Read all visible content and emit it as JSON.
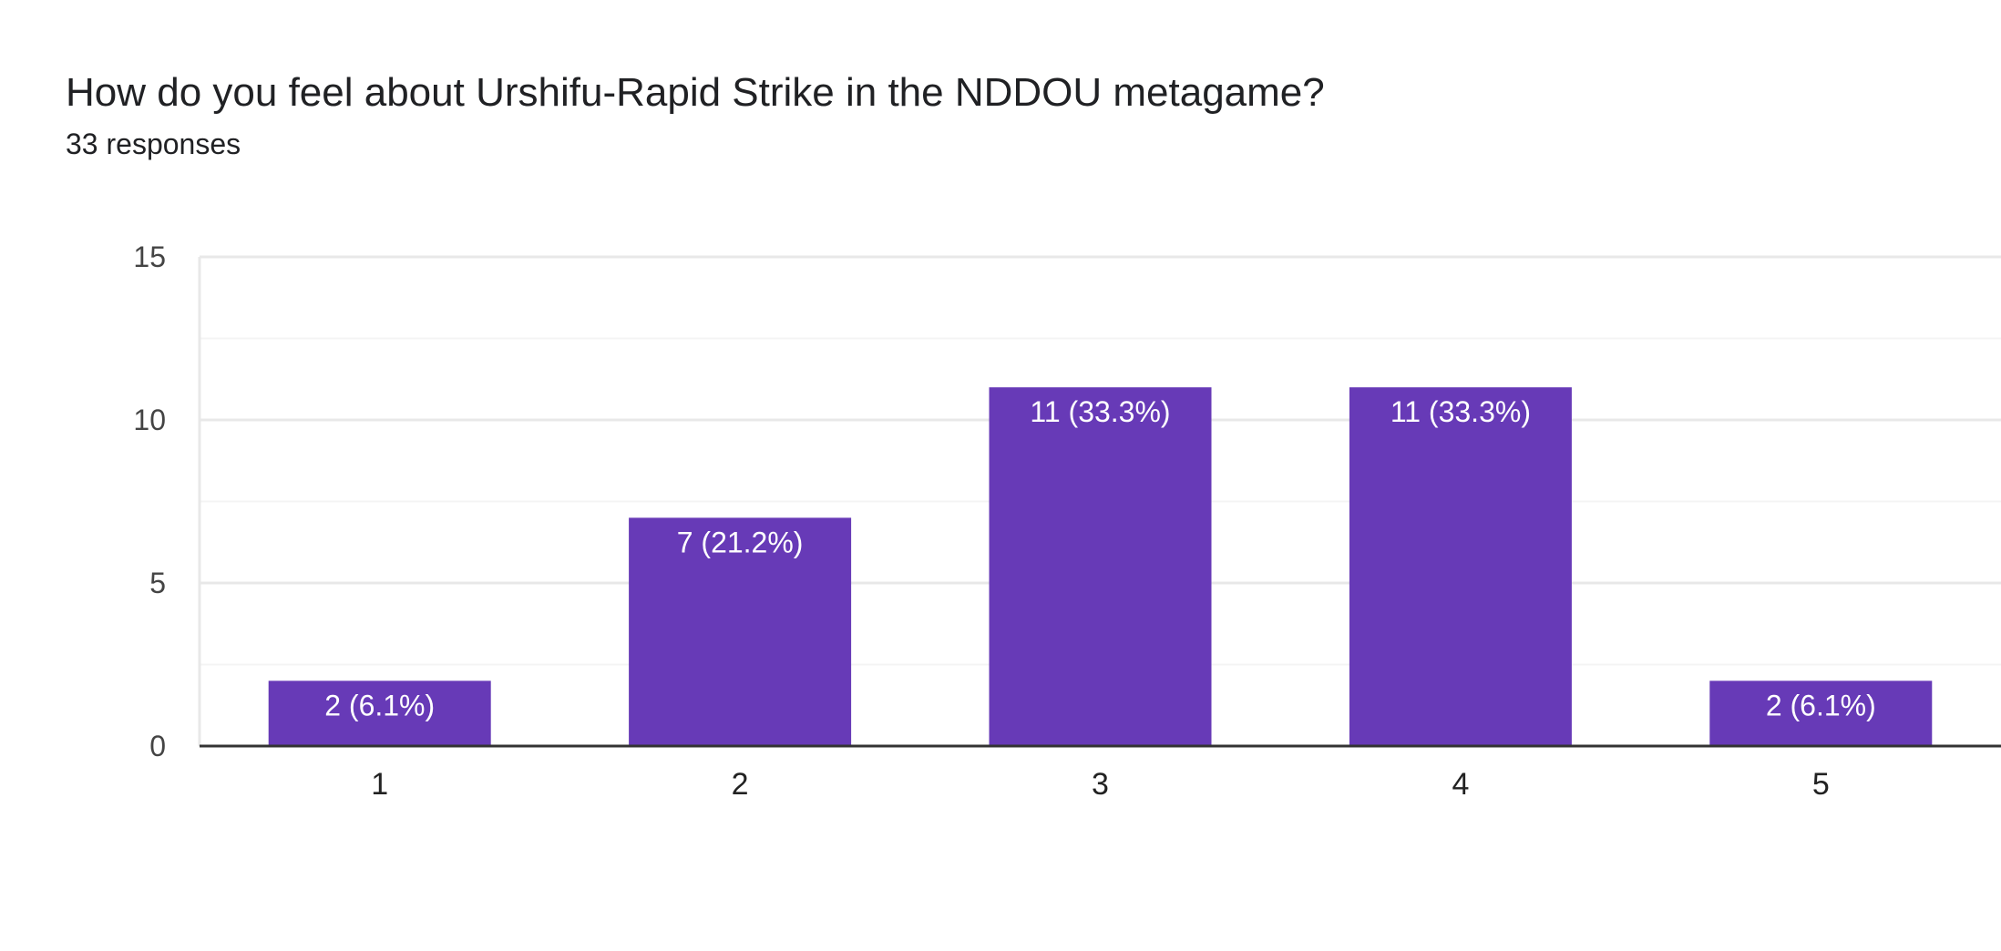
{
  "question": {
    "title": "How do you feel about Urshifu-Rapid Strike in the NDDOU metagame?",
    "responses": "33 responses"
  },
  "colors": {
    "bar": "#673ab7",
    "gridline": "#e8e8e8",
    "minor_gridline": "#f4f4f4",
    "axis": "#333333",
    "bar_label": "#ffffff"
  },
  "chart_data": {
    "type": "bar",
    "categories": [
      "1",
      "2",
      "3",
      "4",
      "5"
    ],
    "values": [
      2,
      7,
      11,
      11,
      2
    ],
    "data_labels": [
      "2 (6.1%)",
      "7 (21.2%)",
      "11 (33.3%)",
      "11 (33.3%)",
      "2 (6.1%)"
    ],
    "y_ticks": [
      "0",
      "5",
      "10",
      "15"
    ],
    "ylim": [
      0,
      15
    ],
    "title": "How do you feel about Urshifu-Rapid Strike in the NDDOU metagame?",
    "subtitle": "33 responses",
    "xlabel": "",
    "ylabel": "",
    "grid": true,
    "legend": "none"
  }
}
